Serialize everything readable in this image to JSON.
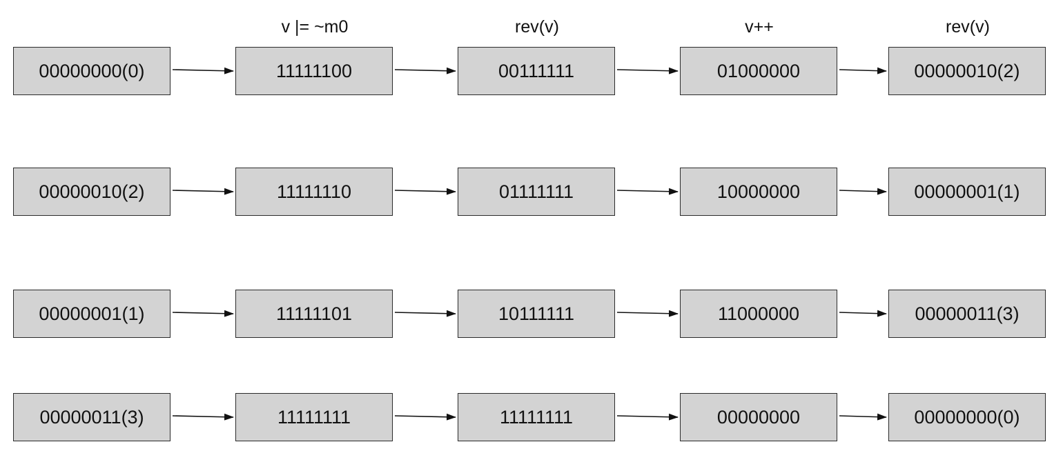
{
  "column_headers": [
    "",
    "v |= ~m0",
    "rev(v)",
    "v++",
    "rev(v)"
  ],
  "rows": [
    [
      "00000000(0)",
      "11111100",
      "00111111",
      "01000000",
      "00000010(2)"
    ],
    [
      "00000010(2)",
      "11111110",
      "01111111",
      "10000000",
      "00000001(1)"
    ],
    [
      "00000001(1)",
      "11111101",
      "10111111",
      "11000000",
      "00000011(3)"
    ],
    [
      "00000011(3)",
      "11111111",
      "11111111",
      "00000000",
      "00000000(0)"
    ]
  ],
  "colors": {
    "box_fill": "#d3d3d3",
    "box_border": "#2a2a2a",
    "arrow": "#111111",
    "text": "#111111"
  }
}
